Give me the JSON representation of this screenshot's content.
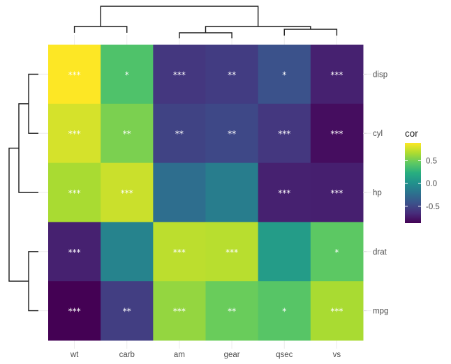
{
  "chart_data": {
    "type": "heatmap",
    "title": "",
    "x_categories": [
      "wt",
      "carb",
      "am",
      "gear",
      "qsec",
      "vs"
    ],
    "y_categories": [
      "disp",
      "cyl",
      "hp",
      "drat",
      "mpg"
    ],
    "values": [
      [
        0.89,
        0.39,
        -0.59,
        -0.56,
        -0.43,
        -0.71
      ],
      [
        0.78,
        0.53,
        -0.52,
        -0.49,
        -0.59,
        -0.81
      ],
      [
        0.66,
        0.75,
        -0.24,
        -0.13,
        -0.71,
        -0.72
      ],
      [
        -0.71,
        -0.09,
        0.71,
        0.7,
        0.09,
        0.44
      ],
      [
        -0.87,
        -0.55,
        0.6,
        0.48,
        0.42,
        0.66
      ]
    ],
    "significance": [
      [
        "***",
        "*",
        "***",
        "**",
        "*",
        "***"
      ],
      [
        "***",
        "**",
        "**",
        "**",
        "***",
        "***"
      ],
      [
        "***",
        "***",
        "",
        "",
        "***",
        "***"
      ],
      [
        "***",
        "",
        "***",
        "***",
        "",
        "*"
      ],
      [
        "***",
        "**",
        "***",
        "**",
        "*",
        "***"
      ]
    ],
    "colorscale": "viridis",
    "legend": {
      "title": "cor",
      "ticks": [
        "0.5",
        "0.0",
        "-0.5"
      ],
      "tick_values": [
        0.5,
        0.0,
        -0.5
      ],
      "range": [
        -0.87,
        0.89
      ],
      "position": "right"
    },
    "dendrogram_columns": "((wt,carb),((am,gear),(qsec,vs)))",
    "dendrogram_rows": "(((disp,cyl),hp),(drat,mpg))",
    "xlabel": "",
    "ylabel": "",
    "grid": true
  }
}
